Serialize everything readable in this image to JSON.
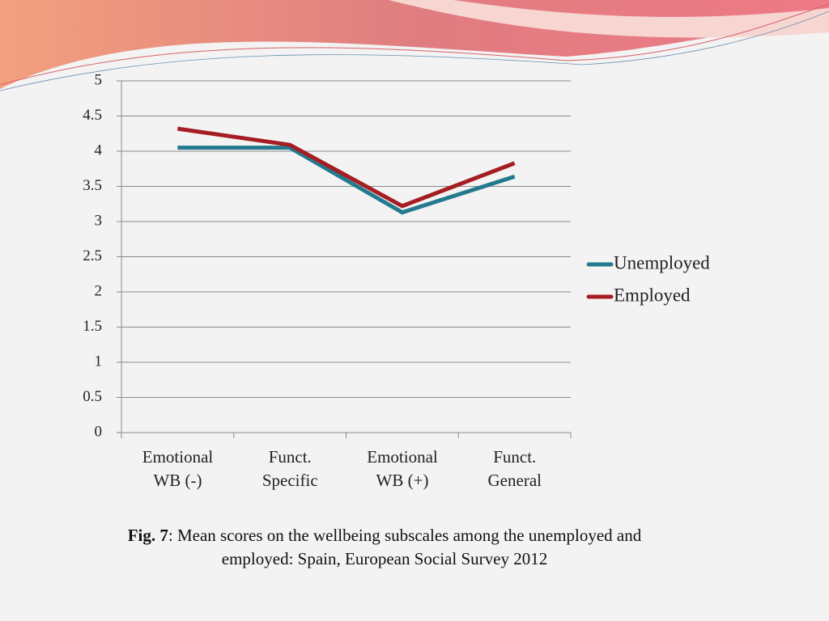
{
  "chart_data": {
    "type": "line",
    "categories": [
      "Emotional\nWB (-)",
      "Funct.\nSpecific",
      "Emotional\nWB (+)",
      "Funct.\nGeneral"
    ],
    "series": [
      {
        "name": "Unemployed",
        "color": "#23798e",
        "values": [
          4.05,
          4.05,
          3.13,
          3.64
        ]
      },
      {
        "name": "Employed",
        "color": "#a51d23",
        "values": [
          4.32,
          4.09,
          3.22,
          3.83
        ]
      }
    ],
    "ylim": [
      0,
      5
    ],
    "yticks": [
      0,
      0.5,
      1,
      1.5,
      2,
      2.5,
      3,
      3.5,
      4,
      4.5,
      5
    ],
    "grid": true,
    "legend": "right",
    "caption": {
      "label": "Fig. 7",
      "text": ": Mean scores on the wellbeing subscales among the unemployed and employed: Spain, European Social Survey 2012"
    }
  }
}
